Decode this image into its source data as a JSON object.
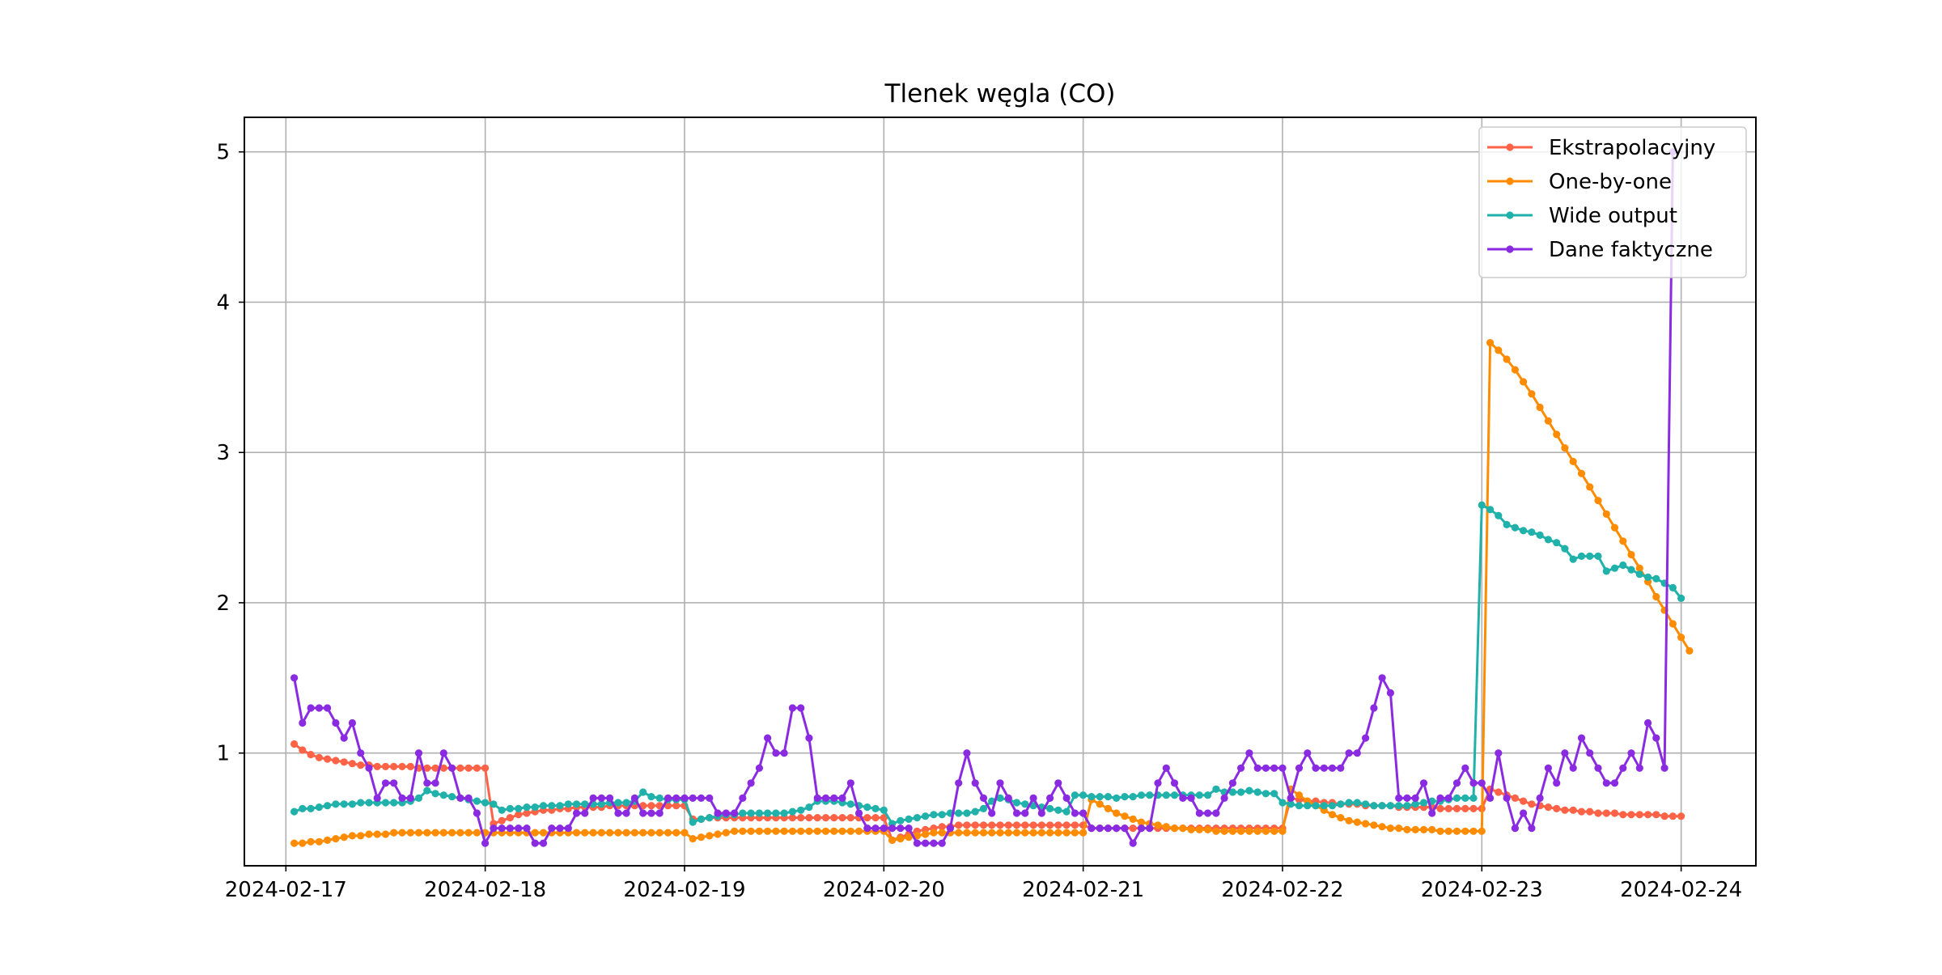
{
  "chart_data": {
    "type": "line",
    "title": "Tlenek węgla (CO)",
    "xlabel": "",
    "ylabel": "",
    "x_axis": {
      "type": "date",
      "ticks": [
        "2024-02-17",
        "2024-02-18",
        "2024-02-19",
        "2024-02-20",
        "2024-02-21",
        "2024-02-22",
        "2024-02-23",
        "2024-02-24"
      ],
      "range": [
        "2024-02-16T19:00",
        "2024-02-24T09:00"
      ]
    },
    "y_axis": {
      "ticks": [
        1,
        2,
        3,
        4,
        5
      ],
      "ylim": [
        0.25,
        5.23
      ]
    },
    "grid": true,
    "legend_position": "top-right",
    "x_start": "2024-02-17T01:00",
    "x_step_hours": 1,
    "series": [
      {
        "name": "Ekstrapolacyjny",
        "color": "#ff6347",
        "values": [
          1.06,
          1.02,
          0.99,
          0.97,
          0.96,
          0.95,
          0.94,
          0.93,
          0.92,
          0.92,
          0.91,
          0.91,
          0.91,
          0.91,
          0.91,
          0.9,
          0.9,
          0.9,
          0.9,
          0.9,
          0.9,
          0.9,
          0.9,
          0.9,
          0.53,
          0.55,
          0.57,
          0.59,
          0.6,
          0.61,
          0.62,
          0.62,
          0.63,
          0.63,
          0.64,
          0.64,
          0.64,
          0.64,
          0.65,
          0.65,
          0.65,
          0.65,
          0.65,
          0.65,
          0.65,
          0.65,
          0.65,
          0.65,
          0.56,
          0.56,
          0.57,
          0.57,
          0.57,
          0.57,
          0.57,
          0.57,
          0.57,
          0.57,
          0.57,
          0.57,
          0.57,
          0.57,
          0.57,
          0.57,
          0.57,
          0.57,
          0.57,
          0.57,
          0.57,
          0.57,
          0.57,
          0.57,
          0.42,
          0.44,
          0.46,
          0.48,
          0.49,
          0.5,
          0.51,
          0.51,
          0.52,
          0.52,
          0.52,
          0.52,
          0.52,
          0.52,
          0.52,
          0.52,
          0.52,
          0.52,
          0.52,
          0.52,
          0.52,
          0.52,
          0.52,
          0.52,
          0.5,
          0.5,
          0.5,
          0.5,
          0.5,
          0.5,
          0.5,
          0.5,
          0.5,
          0.5,
          0.5,
          0.5,
          0.5,
          0.5,
          0.5,
          0.5,
          0.5,
          0.5,
          0.5,
          0.5,
          0.5,
          0.5,
          0.5,
          0.5,
          0.7,
          0.69,
          0.68,
          0.68,
          0.67,
          0.67,
          0.66,
          0.66,
          0.66,
          0.65,
          0.65,
          0.65,
          0.65,
          0.64,
          0.64,
          0.64,
          0.64,
          0.64,
          0.63,
          0.63,
          0.63,
          0.63,
          0.63,
          0.63,
          0.76,
          0.74,
          0.72,
          0.7,
          0.68,
          0.66,
          0.65,
          0.64,
          0.63,
          0.62,
          0.62,
          0.61,
          0.61,
          0.6,
          0.6,
          0.6,
          0.59,
          0.59,
          0.59,
          0.59,
          0.59,
          0.58,
          0.58,
          0.58
        ]
      },
      {
        "name": "One-by-one",
        "color": "#ff8c00",
        "values": [
          0.4,
          0.4,
          0.41,
          0.41,
          0.42,
          0.43,
          0.44,
          0.45,
          0.45,
          0.46,
          0.46,
          0.46,
          0.47,
          0.47,
          0.47,
          0.47,
          0.47,
          0.47,
          0.47,
          0.47,
          0.47,
          0.47,
          0.47,
          0.47,
          0.47,
          0.47,
          0.47,
          0.47,
          0.47,
          0.47,
          0.47,
          0.47,
          0.47,
          0.47,
          0.47,
          0.47,
          0.47,
          0.47,
          0.47,
          0.47,
          0.47,
          0.47,
          0.47,
          0.47,
          0.47,
          0.47,
          0.47,
          0.47,
          0.43,
          0.44,
          0.45,
          0.46,
          0.47,
          0.48,
          0.48,
          0.48,
          0.48,
          0.48,
          0.48,
          0.48,
          0.48,
          0.48,
          0.48,
          0.48,
          0.48,
          0.48,
          0.48,
          0.48,
          0.48,
          0.48,
          0.48,
          0.48,
          0.42,
          0.43,
          0.44,
          0.45,
          0.46,
          0.47,
          0.47,
          0.47,
          0.47,
          0.47,
          0.47,
          0.47,
          0.47,
          0.47,
          0.47,
          0.47,
          0.47,
          0.47,
          0.47,
          0.47,
          0.47,
          0.47,
          0.47,
          0.47,
          0.69,
          0.66,
          0.63,
          0.6,
          0.58,
          0.56,
          0.54,
          0.53,
          0.52,
          0.51,
          0.5,
          0.5,
          0.49,
          0.49,
          0.49,
          0.48,
          0.48,
          0.48,
          0.48,
          0.48,
          0.48,
          0.48,
          0.48,
          0.48,
          0.76,
          0.72,
          0.68,
          0.65,
          0.62,
          0.59,
          0.57,
          0.55,
          0.54,
          0.53,
          0.52,
          0.51,
          0.5,
          0.5,
          0.49,
          0.49,
          0.49,
          0.49,
          0.48,
          0.48,
          0.48,
          0.48,
          0.48,
          0.48,
          3.73,
          3.68,
          3.62,
          3.55,
          3.47,
          3.39,
          3.3,
          3.21,
          3.12,
          3.03,
          2.94,
          2.86,
          2.77,
          2.68,
          2.59,
          2.5,
          2.41,
          2.32,
          2.23,
          2.14,
          2.04,
          1.95,
          1.86,
          1.77,
          1.68
        ]
      },
      {
        "name": "Wide output",
        "color": "#20b2aa",
        "values": [
          0.61,
          0.63,
          0.63,
          0.64,
          0.65,
          0.66,
          0.66,
          0.66,
          0.67,
          0.67,
          0.67,
          0.67,
          0.67,
          0.67,
          0.68,
          0.7,
          0.75,
          0.73,
          0.72,
          0.71,
          0.7,
          0.69,
          0.68,
          0.67,
          0.66,
          0.62,
          0.63,
          0.63,
          0.64,
          0.64,
          0.65,
          0.65,
          0.65,
          0.66,
          0.66,
          0.66,
          0.66,
          0.66,
          0.67,
          0.67,
          0.67,
          0.68,
          0.74,
          0.71,
          0.7,
          0.69,
          0.69,
          0.69,
          0.54,
          0.56,
          0.57,
          0.58,
          0.59,
          0.59,
          0.6,
          0.6,
          0.6,
          0.6,
          0.6,
          0.6,
          0.61,
          0.62,
          0.64,
          0.68,
          0.68,
          0.68,
          0.67,
          0.66,
          0.65,
          0.64,
          0.63,
          0.62,
          0.53,
          0.55,
          0.56,
          0.57,
          0.58,
          0.59,
          0.59,
          0.6,
          0.6,
          0.6,
          0.61,
          0.63,
          0.68,
          0.7,
          0.69,
          0.67,
          0.66,
          0.65,
          0.64,
          0.63,
          0.62,
          0.61,
          0.72,
          0.72,
          0.71,
          0.71,
          0.71,
          0.7,
          0.71,
          0.71,
          0.72,
          0.72,
          0.72,
          0.72,
          0.72,
          0.72,
          0.72,
          0.72,
          0.72,
          0.76,
          0.74,
          0.74,
          0.74,
          0.75,
          0.74,
          0.73,
          0.73,
          0.67,
          0.66,
          0.65,
          0.65,
          0.65,
          0.65,
          0.65,
          0.66,
          0.67,
          0.67,
          0.66,
          0.65,
          0.65,
          0.65,
          0.65,
          0.65,
          0.66,
          0.67,
          0.68,
          0.68,
          0.69,
          0.7,
          0.7,
          0.7,
          2.65,
          2.62,
          2.58,
          2.52,
          2.5,
          2.48,
          2.47,
          2.45,
          2.42,
          2.4,
          2.36,
          2.29,
          2.31,
          2.31,
          2.31,
          2.21,
          2.23,
          2.25,
          2.22,
          2.19,
          2.17,
          2.16,
          2.13,
          2.1,
          2.03
        ]
      },
      {
        "name": "Dane faktyczne",
        "color": "#8a2be2",
        "values": [
          1.5,
          1.2,
          1.3,
          1.3,
          1.3,
          1.2,
          1.1,
          1.2,
          1.0,
          0.9,
          0.7,
          0.8,
          0.8,
          0.7,
          0.7,
          1.0,
          0.8,
          0.8,
          1.0,
          0.9,
          0.7,
          0.7,
          0.6,
          0.4,
          0.5,
          0.5,
          0.5,
          0.5,
          0.5,
          0.4,
          0.4,
          0.5,
          0.5,
          0.5,
          0.6,
          0.6,
          0.7,
          0.7,
          0.7,
          0.6,
          0.6,
          0.7,
          0.6,
          0.6,
          0.6,
          0.7,
          0.7,
          0.7,
          0.7,
          0.7,
          0.7,
          0.6,
          0.6,
          0.6,
          0.7,
          0.8,
          0.9,
          1.1,
          1.0,
          1.0,
          1.3,
          1.3,
          1.1,
          0.7,
          0.7,
          0.7,
          0.7,
          0.8,
          0.6,
          0.5,
          0.5,
          0.5,
          0.5,
          0.5,
          0.5,
          0.4,
          0.4,
          0.4,
          0.4,
          0.5,
          0.8,
          1.0,
          0.8,
          0.7,
          0.6,
          0.8,
          0.7,
          0.6,
          0.6,
          0.7,
          0.6,
          0.7,
          0.8,
          0.7,
          0.6,
          0.6,
          0.5,
          0.5,
          0.5,
          0.5,
          0.5,
          0.4,
          0.5,
          0.5,
          0.8,
          0.9,
          0.8,
          0.7,
          0.7,
          0.6,
          0.6,
          0.6,
          0.7,
          0.8,
          0.9,
          1.0,
          0.9,
          0.9,
          0.9,
          0.9,
          0.7,
          0.9,
          1.0,
          0.9,
          0.9,
          0.9,
          0.9,
          1.0,
          1.0,
          1.1,
          1.3,
          1.5,
          1.4,
          0.7,
          0.7,
          0.7,
          0.8,
          0.6,
          0.7,
          0.7,
          0.8,
          0.9,
          0.8,
          0.8,
          0.7,
          1.0,
          0.7,
          0.5,
          0.6,
          0.5,
          0.7,
          0.9,
          0.8,
          1.0,
          0.9,
          1.1,
          1.0,
          0.9,
          0.8,
          0.8,
          0.9,
          1.0,
          0.9,
          1.2,
          1.1,
          0.9,
          5.0
        ]
      }
    ]
  }
}
